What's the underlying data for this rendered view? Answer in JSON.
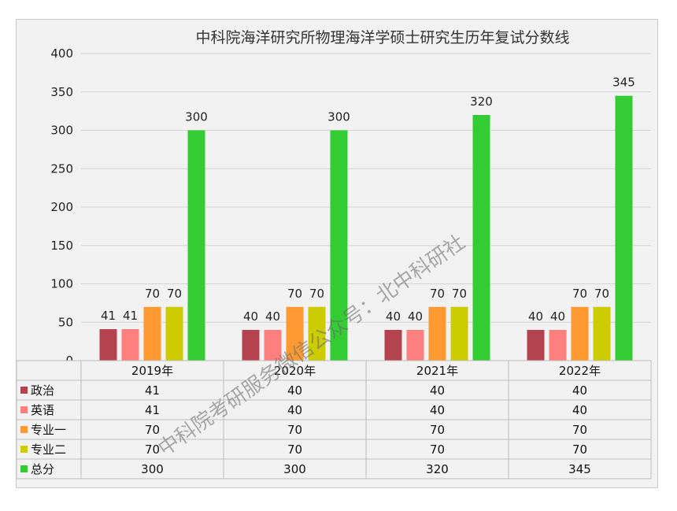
{
  "chart_data": {
    "type": "bar",
    "title": "中科院海洋研究所物理海洋学硕士研究生历年复试分数线",
    "categories": [
      "2019年",
      "2020年",
      "2021年",
      "2022年"
    ],
    "series": [
      {
        "name": "政治",
        "color": "#b5424f",
        "values": [
          41,
          40,
          40,
          40
        ]
      },
      {
        "name": "英语",
        "color": "#ff7f7f",
        "values": [
          41,
          40,
          40,
          40
        ]
      },
      {
        "name": "专业一",
        "color": "#ff9a33",
        "values": [
          70,
          70,
          70,
          70
        ]
      },
      {
        "name": "专业二",
        "color": "#cccc00",
        "values": [
          70,
          70,
          70,
          70
        ]
      },
      {
        "name": "总分",
        "color": "#33cc33",
        "values": [
          300,
          300,
          320,
          345
        ]
      }
    ],
    "ylim": [
      0,
      400
    ],
    "yticks": [
      0,
      50,
      100,
      150,
      200,
      250,
      300,
      350,
      400
    ],
    "grid": true,
    "legend": "data-table",
    "watermark": "中科院考研服务微信公众号：北中科研社"
  }
}
